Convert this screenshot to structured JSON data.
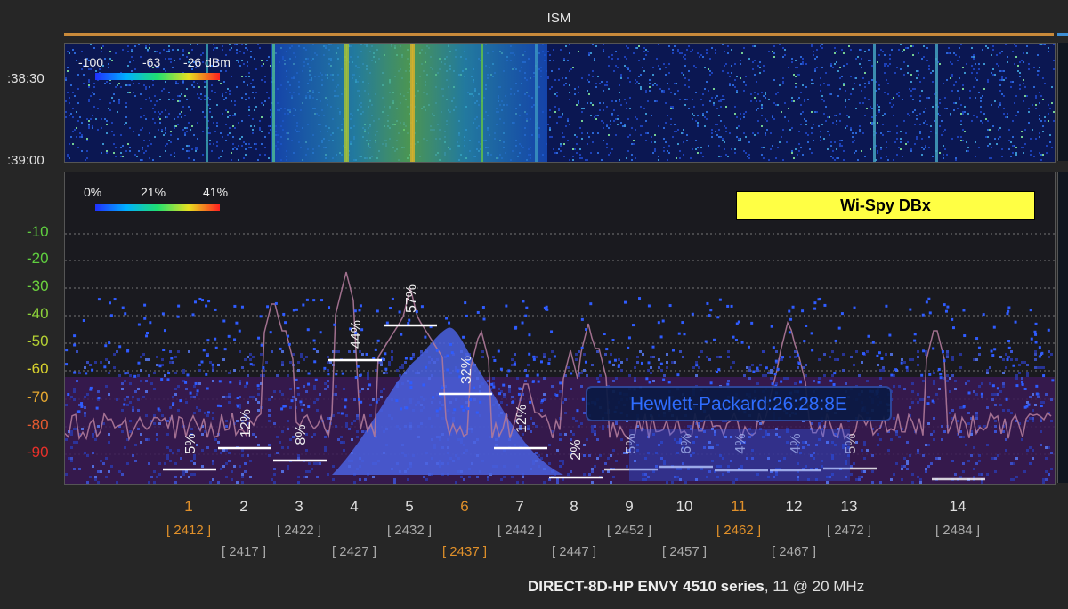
{
  "band": {
    "label": "ISM"
  },
  "waterfall": {
    "times": [
      ":38:30",
      ":39:00"
    ],
    "colorbar": {
      "labels": [
        "-100",
        "-63",
        "-26 dBm"
      ]
    }
  },
  "spectrum": {
    "colorbar": {
      "labels": [
        "0%",
        "21%",
        "41%"
      ]
    },
    "y_ticks": [
      "-10",
      "-20",
      "-30",
      "-40",
      "-50",
      "-60",
      "-70",
      "-80",
      "-90"
    ],
    "device_name": "Wi-Spy DBx",
    "highlight_network": "Hewlett-Packard:26:28:8E",
    "channel_utilization": [
      {
        "channel": "1",
        "pct": "5%"
      },
      {
        "channel": "2",
        "pct": "12%"
      },
      {
        "channel": "3",
        "pct": "8%"
      },
      {
        "channel": "4",
        "pct": "44%"
      },
      {
        "channel": "5",
        "pct": "57%"
      },
      {
        "channel": "6",
        "pct": "32%"
      },
      {
        "channel": "7",
        "pct": "12%"
      },
      {
        "channel": "8",
        "pct": "2%"
      },
      {
        "channel": "9",
        "pct": "5%"
      },
      {
        "channel": "10",
        "pct": "6%"
      },
      {
        "channel": "11",
        "pct": "4%"
      },
      {
        "channel": "12",
        "pct": "4%"
      },
      {
        "channel": "13",
        "pct": "5%"
      }
    ]
  },
  "channels": [
    {
      "num": "1",
      "freq": "[ 2412 ]",
      "highlight": true
    },
    {
      "num": "2",
      "freq": "[ 2417 ]",
      "highlight": false
    },
    {
      "num": "3",
      "freq": "[ 2422 ]",
      "highlight": false
    },
    {
      "num": "4",
      "freq": "[ 2427 ]",
      "highlight": false
    },
    {
      "num": "5",
      "freq": "[ 2432 ]",
      "highlight": false
    },
    {
      "num": "6",
      "freq": "[ 2437 ]",
      "highlight": true
    },
    {
      "num": "7",
      "freq": "[ 2442 ]",
      "highlight": false
    },
    {
      "num": "8",
      "freq": "[ 2447 ]",
      "highlight": false
    },
    {
      "num": "9",
      "freq": "[ 2452 ]",
      "highlight": false
    },
    {
      "num": "10",
      "freq": "[ 2457 ]",
      "highlight": false
    },
    {
      "num": "11",
      "freq": "[ 2462 ]",
      "highlight": true
    },
    {
      "num": "12",
      "freq": "[ 2467 ]",
      "highlight": false
    },
    {
      "num": "13",
      "freq": "[ 2472 ]",
      "highlight": false
    },
    {
      "num": "14",
      "freq": "[ 2484 ]",
      "highlight": false
    }
  ],
  "footer": {
    "network": "DIRECT-8D-HP ENVY 4510 series",
    "detail": ", 11 @ 20 MHz"
  },
  "colors": {
    "accent_orange": "#c98a3a",
    "highlight_channel": "#e0902a",
    "badge": "#ffff44"
  }
}
